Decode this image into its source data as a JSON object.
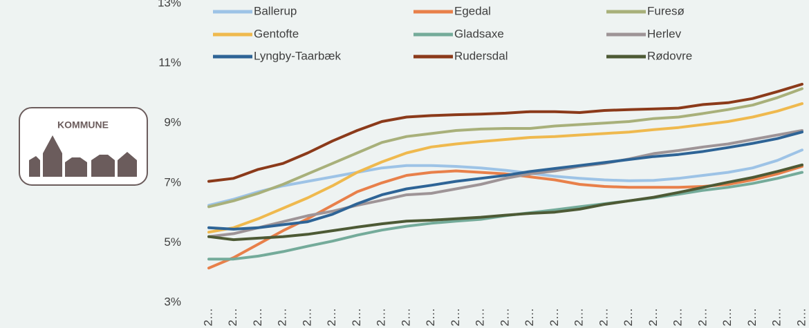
{
  "logo_text": "KOMMUNE",
  "chart_data": {
    "type": "line",
    "categories": [
      "2…",
      "2…",
      "2…",
      "2…",
      "2…",
      "2…",
      "2…",
      "2…",
      "2…",
      "2…",
      "2…",
      "2…",
      "2…",
      "2…",
      "2…",
      "2…",
      "2…",
      "2…",
      "2…",
      "2…",
      "2…",
      "2…",
      "2…",
      "2…",
      "2…"
    ],
    "ylim": [
      3,
      13
    ],
    "yticks": [
      {
        "value": 3,
        "label": "3%"
      },
      {
        "value": 5,
        "label": "5%"
      },
      {
        "value": 7,
        "label": "7%"
      },
      {
        "value": 9,
        "label": "9%"
      },
      {
        "value": 11,
        "label": "11%"
      },
      {
        "value": 13,
        "label": "13%"
      }
    ],
    "series": [
      {
        "name": "Ballerup",
        "color": "#9dc3e6",
        "values": [
          6.25,
          6.45,
          6.7,
          6.9,
          7.05,
          7.2,
          7.35,
          7.5,
          7.58,
          7.58,
          7.55,
          7.5,
          7.42,
          7.32,
          7.22,
          7.15,
          7.1,
          7.07,
          7.08,
          7.15,
          7.25,
          7.35,
          7.5,
          7.75,
          8.1
        ]
      },
      {
        "name": "Egedal",
        "color": "#e8804a",
        "values": [
          4.15,
          4.5,
          4.95,
          5.4,
          5.8,
          6.25,
          6.7,
          7.0,
          7.25,
          7.35,
          7.4,
          7.35,
          7.3,
          7.2,
          7.1,
          6.95,
          6.88,
          6.85,
          6.85,
          6.85,
          6.88,
          6.95,
          7.1,
          7.3,
          7.55
        ]
      },
      {
        "name": "Furesø",
        "color": "#a8b07a",
        "values": [
          6.2,
          6.4,
          6.65,
          6.95,
          7.3,
          7.65,
          8.0,
          8.35,
          8.55,
          8.65,
          8.75,
          8.8,
          8.82,
          8.82,
          8.9,
          8.95,
          9.0,
          9.05,
          9.15,
          9.2,
          9.32,
          9.45,
          9.6,
          9.85,
          10.15
        ]
      },
      {
        "name": "Gentofte",
        "color": "#efb94e",
        "values": [
          5.35,
          5.5,
          5.8,
          6.15,
          6.5,
          6.9,
          7.35,
          7.7,
          8.0,
          8.2,
          8.3,
          8.38,
          8.45,
          8.52,
          8.55,
          8.6,
          8.65,
          8.7,
          8.78,
          8.85,
          8.95,
          9.05,
          9.2,
          9.4,
          9.65
        ]
      },
      {
        "name": "Gladsaxe",
        "color": "#74ab9a",
        "values": [
          4.45,
          4.45,
          4.55,
          4.7,
          4.88,
          5.05,
          5.25,
          5.42,
          5.55,
          5.65,
          5.72,
          5.78,
          5.9,
          6.0,
          6.1,
          6.2,
          6.3,
          6.4,
          6.5,
          6.62,
          6.75,
          6.85,
          6.98,
          7.15,
          7.35
        ]
      },
      {
        "name": "Herlev",
        "color": "#9e9497",
        "values": [
          5.2,
          5.3,
          5.5,
          5.7,
          5.9,
          6.05,
          6.25,
          6.42,
          6.6,
          6.65,
          6.8,
          6.95,
          7.15,
          7.3,
          7.4,
          7.55,
          7.65,
          7.8,
          7.98,
          8.08,
          8.2,
          8.3,
          8.45,
          8.6,
          8.75
        ]
      },
      {
        "name": "Lyngby-Taarbæk",
        "color": "#2e6496",
        "values": [
          5.5,
          5.45,
          5.5,
          5.6,
          5.7,
          5.95,
          6.3,
          6.6,
          6.8,
          6.92,
          7.05,
          7.15,
          7.25,
          7.38,
          7.48,
          7.58,
          7.68,
          7.78,
          7.88,
          7.95,
          8.05,
          8.18,
          8.32,
          8.48,
          8.7
        ]
      },
      {
        "name": "Rudersdal",
        "color": "#8b3a1a",
        "values": [
          7.05,
          7.15,
          7.45,
          7.65,
          8.0,
          8.4,
          8.75,
          9.05,
          9.2,
          9.25,
          9.28,
          9.3,
          9.33,
          9.38,
          9.38,
          9.35,
          9.42,
          9.45,
          9.47,
          9.5,
          9.62,
          9.68,
          9.82,
          10.05,
          10.3
        ]
      },
      {
        "name": "Rødovre",
        "color": "#4d5a35",
        "values": [
          5.2,
          5.1,
          5.15,
          5.2,
          5.28,
          5.4,
          5.52,
          5.63,
          5.72,
          5.75,
          5.8,
          5.85,
          5.92,
          5.98,
          6.02,
          6.12,
          6.28,
          6.4,
          6.52,
          6.68,
          6.85,
          7.02,
          7.18,
          7.38,
          7.6
        ]
      }
    ]
  }
}
